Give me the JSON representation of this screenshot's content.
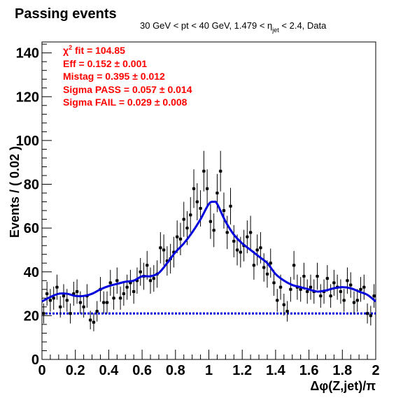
{
  "chart_data": {
    "type": "scatter",
    "title": "Passing events",
    "subtitle_parts": {
      "pre": "30 GeV < pt < 40 GeV, 1.479 < ",
      "eta": "η",
      "eta_sub": "jet",
      "post": " < 2.4, Data"
    },
    "xlabel": "Δφ(Z,jet)/π",
    "ylabel": "Events / ( 0.02 )",
    "xlim": [
      0,
      2
    ],
    "ylim": [
      0,
      145
    ],
    "x_ticks": [
      "0",
      "0.2",
      "0.4",
      "0.6",
      "0.8",
      "1",
      "1.2",
      "1.4",
      "1.6",
      "1.8",
      "2"
    ],
    "y_ticks": [
      "0",
      "20",
      "40",
      "60",
      "80",
      "100",
      "120",
      "140"
    ],
    "y_tick_values": [
      0,
      20,
      40,
      60,
      80,
      100,
      120,
      140
    ],
    "grid": false,
    "fit_labels": {
      "chi2_chi": "χ",
      "chi2_sup": "2",
      "chi2_rest": " fit = 104.85",
      "eff": "Eff = 0.152 ± 0.001",
      "mistag": "Mistag = 0.395 ± 0.012",
      "sigma_pass": "Sigma PASS = 0.057 ± 0.014",
      "sigma_fail": "Sigma FAIL = 0.029 ± 0.008"
    },
    "colors": {
      "data": "#000000",
      "fit": "#0000dd",
      "labels": "#ff0000"
    },
    "data_points": {
      "x": [
        0.01,
        0.03,
        0.05,
        0.07,
        0.09,
        0.11,
        0.13,
        0.15,
        0.17,
        0.19,
        0.21,
        0.23,
        0.25,
        0.27,
        0.29,
        0.31,
        0.33,
        0.35,
        0.37,
        0.39,
        0.41,
        0.43,
        0.45,
        0.47,
        0.49,
        0.51,
        0.53,
        0.55,
        0.57,
        0.59,
        0.61,
        0.63,
        0.65,
        0.67,
        0.69,
        0.71,
        0.73,
        0.75,
        0.77,
        0.79,
        0.81,
        0.83,
        0.85,
        0.87,
        0.89,
        0.91,
        0.93,
        0.95,
        0.97,
        0.99,
        1.01,
        1.03,
        1.05,
        1.07,
        1.09,
        1.11,
        1.13,
        1.15,
        1.17,
        1.19,
        1.21,
        1.23,
        1.25,
        1.27,
        1.29,
        1.31,
        1.33,
        1.35,
        1.37,
        1.39,
        1.41,
        1.43,
        1.45,
        1.47,
        1.49,
        1.51,
        1.53,
        1.55,
        1.57,
        1.59,
        1.61,
        1.63,
        1.65,
        1.67,
        1.69,
        1.71,
        1.73,
        1.75,
        1.77,
        1.79,
        1.81,
        1.83,
        1.85,
        1.87,
        1.89,
        1.91,
        1.93,
        1.95,
        1.97,
        1.99
      ],
      "y": [
        21,
        30,
        27,
        28,
        33,
        24,
        29,
        27,
        21,
        30,
        31,
        26,
        24,
        29,
        18,
        17,
        22,
        32,
        26,
        26,
        35,
        28,
        36,
        28,
        30,
        33,
        35,
        31,
        36,
        40,
        38,
        43,
        36,
        37,
        39,
        51,
        50,
        45,
        46,
        49,
        56,
        55,
        64,
        60,
        66,
        78,
        72,
        69,
        86,
        78,
        63,
        59,
        76,
        86,
        68,
        58,
        70,
        54,
        50,
        49,
        52,
        56,
        58,
        43,
        50,
        51,
        42,
        39,
        44,
        35,
        27,
        33,
        25,
        22,
        32,
        43,
        33,
        32,
        38,
        31,
        33,
        31,
        38,
        29,
        31,
        37,
        29,
        35,
        33,
        31,
        27,
        36,
        34,
        26,
        27,
        32,
        33,
        21,
        20,
        29
      ]
    },
    "fit_curve": {
      "x": [
        0,
        0.05,
        0.1,
        0.15,
        0.2,
        0.25,
        0.3,
        0.35,
        0.4,
        0.45,
        0.5,
        0.55,
        0.6,
        0.65,
        0.7,
        0.75,
        0.8,
        0.85,
        0.9,
        0.95,
        1.0,
        1.03,
        1.05,
        1.1,
        1.15,
        1.2,
        1.25,
        1.3,
        1.35,
        1.4,
        1.45,
        1.5,
        1.55,
        1.6,
        1.65,
        1.7,
        1.75,
        1.8,
        1.85,
        1.9,
        1.95,
        2.0
      ],
      "y": [
        26.5,
        28.5,
        30,
        30,
        29,
        29,
        30,
        32,
        33.5,
        34.5,
        35.5,
        36,
        38,
        38,
        39.5,
        44,
        49,
        53,
        58,
        64,
        71,
        72,
        71,
        63,
        57,
        53,
        50,
        47,
        44,
        39,
        36,
        34,
        33,
        32,
        31,
        31.5,
        32.5,
        33,
        32.5,
        31,
        29.5,
        26.5
      ]
    },
    "background_level": 21
  }
}
